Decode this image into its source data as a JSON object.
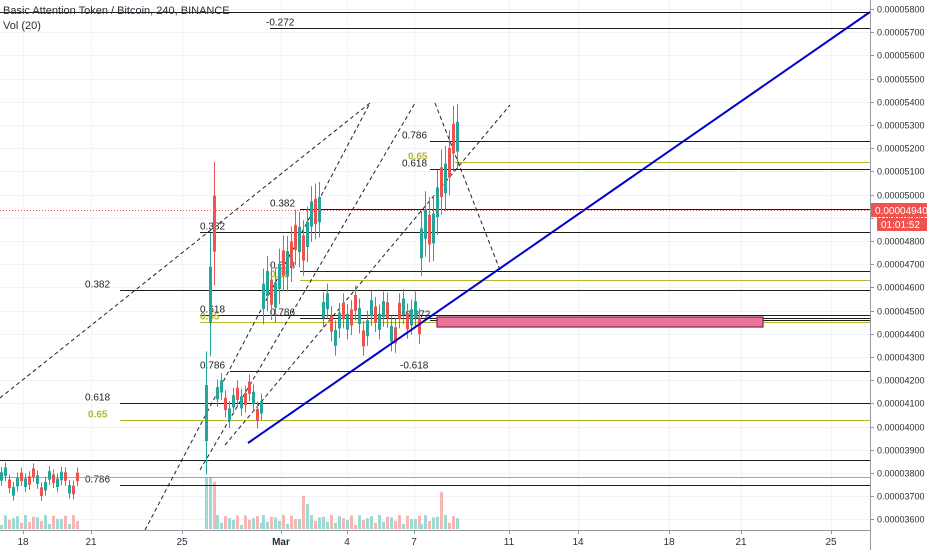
{
  "header": {
    "symbol_title": "Basic Attention Token / Bitcoin, 240, BINANCE",
    "volume_study": "Vol (20)"
  },
  "price_axis": {
    "ticks": [
      "0.00005800",
      "0.00005700",
      "0.00005600",
      "0.00005500",
      "0.00005400",
      "0.00005300",
      "0.00005200",
      "0.00005100",
      "0.00005000",
      "0.00004900",
      "0.00004800",
      "0.00004700",
      "0.00004600",
      "0.00004500",
      "0.00004400",
      "0.00004300",
      "0.00004200",
      "0.00004100",
      "0.00004000",
      "0.00003900",
      "0.00003800",
      "0.00003700",
      "0.00003600"
    ],
    "last_price": "0.00004940",
    "countdown": "01:01:52",
    "last_price_color": "#ef5350"
  },
  "time_axis": {
    "ticks": [
      "18",
      "21",
      "25",
      "Mar",
      "4",
      "7",
      "11",
      "14",
      "18",
      "21",
      "25"
    ]
  },
  "colors": {
    "up": "#26a69a",
    "down": "#ef5350",
    "trend": "#0000cc",
    "fib": "#000000",
    "fib_gold": "#b5b82c",
    "zone_fill": "#e8749a",
    "zone_border": "#8b1a4a"
  },
  "chart_data": {
    "type": "candlestick",
    "title": "Basic Attention Token / Bitcoin, 240, BINANCE",
    "xlabel": "",
    "ylabel": "",
    "ylim": [
      3.59e-05,
      5.88e-05
    ],
    "x_ticks": [
      "18",
      "21",
      "25",
      "Mar",
      "4",
      "7",
      "11",
      "14",
      "18",
      "21",
      "25"
    ],
    "y_ticks": [
      5.8e-05,
      5.7e-05,
      5.6e-05,
      5.5e-05,
      5.4e-05,
      5.3e-05,
      5.2e-05,
      5.1e-05,
      5e-05,
      4.9e-05,
      4.8e-05,
      4.7e-05,
      4.6e-05,
      4.5e-05,
      4.4e-05,
      4.3e-05,
      4.2e-05,
      4.1e-05,
      4e-05,
      3.9e-05,
      3.8e-05,
      3.7e-05,
      3.6e-05
    ],
    "last_price": 4.94e-05,
    "price_phases": [
      {
        "period": "Feb 18 - Feb 19",
        "range": [
          3.65e-05,
          3.88e-05
        ]
      },
      {
        "period": "Feb 26",
        "range": [
          3.7e-05,
          5.21e-05
        ]
      },
      {
        "period": "Feb 27 - Feb 28",
        "range": [
          3.95e-05,
          4.28e-05
        ]
      },
      {
        "period": "Mar 1 - Mar 2",
        "range": [
          4.4e-05,
          5.08e-05
        ]
      },
      {
        "period": "Mar 3 - Mar 6",
        "range": [
          4.25e-05,
          4.68e-05
        ]
      },
      {
        "period": "Mar 7 - Mar 8",
        "range": [
          4.6e-05,
          5.4e-05
        ]
      }
    ],
    "fib_levels": [
      {
        "label": "-0.272",
        "price": 5.72e-05
      },
      {
        "label": "0.786",
        "price": 5.23e-05
      },
      {
        "label": "0.65",
        "price": 5.14e-05
      },
      {
        "label": "0.618",
        "price": 5.11e-05
      },
      {
        "label": "0.382",
        "price": 4.94e-05
      },
      {
        "label": "0.382",
        "price": 4.84e-05
      },
      {
        "label": "0.618",
        "price": 4.67e-05
      },
      {
        "label": "0.65",
        "price": 4.63e-05
      },
      {
        "label": "0.382",
        "price": 4.59e-05
      },
      {
        "label": "0.618",
        "price": 4.48e-05
      },
      {
        "label": "0.786",
        "price": 4.47e-05
      },
      {
        "label": "0.65",
        "price": 4.45e-05
      },
      {
        "label": "-0.272",
        "price": 4.46e-05
      },
      {
        "label": "0.786",
        "price": 4.24e-05
      },
      {
        "label": "-0.618",
        "price": 4.24e-05
      },
      {
        "label": "0.618",
        "price": 4.1e-05
      },
      {
        "label": "0.65",
        "price": 4.03e-05
      },
      {
        "label": "0.786",
        "price": 3.75e-05
      }
    ],
    "trendline": {
      "from": {
        "date": "Feb 27",
        "price": 3.93e-05
      },
      "to": {
        "date": "Mar 25",
        "price": 5.8e-05
      }
    },
    "zone": {
      "from": "Mar 8",
      "to": "Mar 22",
      "price_range": [
        4.47e-05,
        4.5e-05
      ]
    }
  }
}
